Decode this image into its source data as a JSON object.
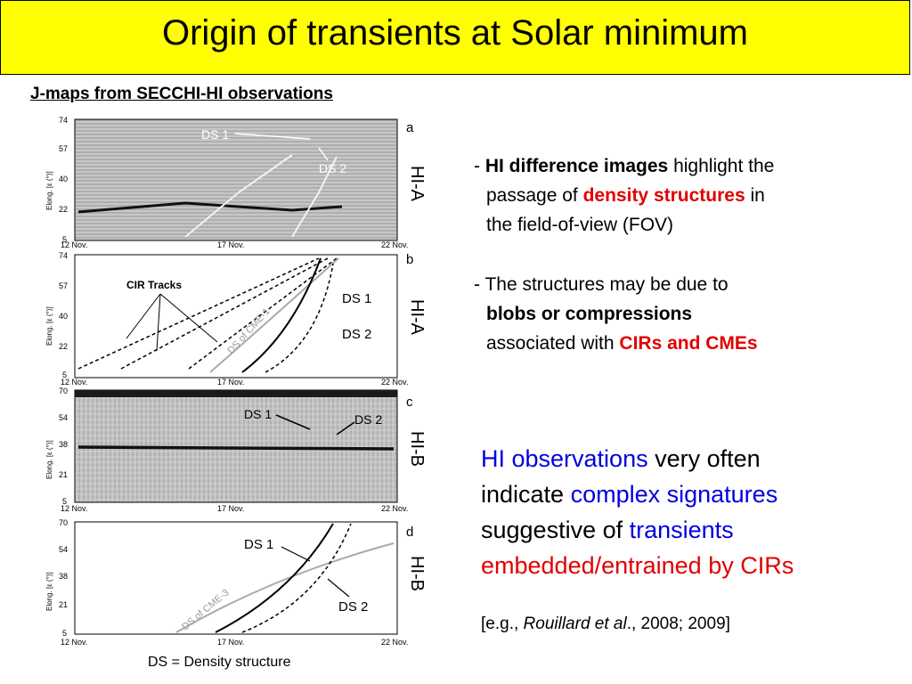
{
  "slide": {
    "title": "Origin of transients at Solar minimum",
    "subtitle": "J-maps from SECCHI-HI observations",
    "caption": "DS = Density structure"
  },
  "figure": {
    "panels": [
      {
        "letter": "a",
        "side_label": "HI-A",
        "yticks": [
          "74",
          "57",
          "40",
          "22",
          "5"
        ],
        "ds1": "DS 1",
        "ds2": "DS 2"
      },
      {
        "letter": "b",
        "side_label": "HI-A",
        "yticks": [
          "74",
          "57",
          "40",
          "22",
          "5"
        ],
        "ds1": "DS 1",
        "ds2": "DS 2",
        "cir": "CIR Tracks",
        "cme": "DS of CME-1"
      },
      {
        "letter": "c",
        "side_label": "HI-B",
        "yticks": [
          "70",
          "54",
          "38",
          "21",
          "5"
        ],
        "ds1": "DS 1",
        "ds2": "DS 2"
      },
      {
        "letter": "d",
        "side_label": "HI-B",
        "yticks": [
          "70",
          "54",
          "38",
          "21",
          "5"
        ],
        "ds1": "DS 1",
        "ds2": "DS 2",
        "cme": "DS of CME-3"
      }
    ],
    "xticks": [
      "12 Nov.",
      "17 Nov.",
      "22 Nov."
    ],
    "ylabel": "Elong. [ε (°)]"
  },
  "bullets": {
    "b1": {
      "dash": "- ",
      "bold": "HI difference images",
      "t1": " highlight the",
      "t2": "passage of ",
      "red": "density structures",
      "t3": " in",
      "t4": "the field-of-view (FOV)"
    },
    "b2": {
      "t1": "- The structures may be due to",
      "bold": "blobs or compressions",
      "t2": "associated with ",
      "red": "CIRs and CMEs"
    }
  },
  "observations": {
    "a": "HI observations",
    "b": " very often",
    "c": "indicate ",
    "d": "complex signatures",
    "e": "suggestive of ",
    "f": "transients",
    "g": "embedded/entrained by CIRs"
  },
  "reference": {
    "pre": "[e.g., ",
    "authors": "Rouillard et al",
    "post": "., 2008; 2009]"
  }
}
